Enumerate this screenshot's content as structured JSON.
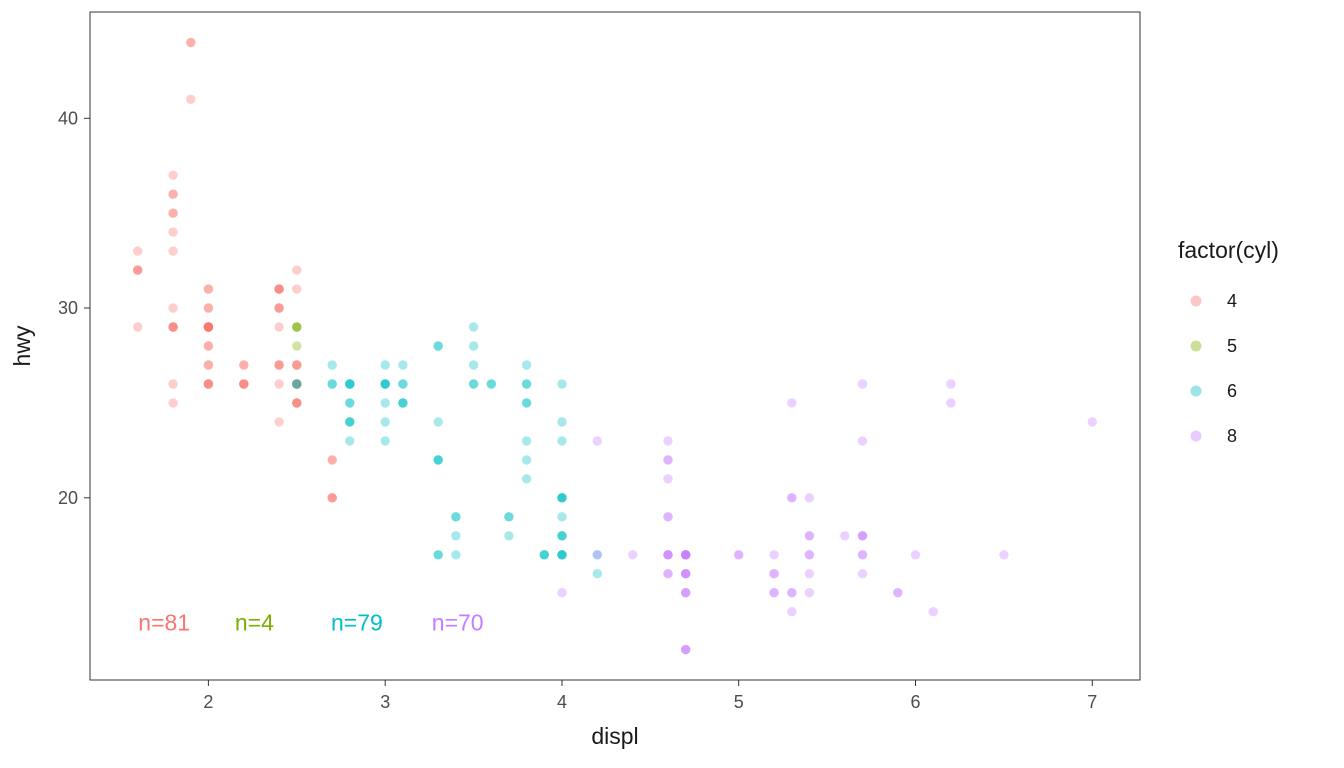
{
  "chart_data": {
    "type": "scatter",
    "title": "",
    "xlabel": "displ",
    "ylabel": "hwy",
    "xlim": [
      1.33,
      7.27
    ],
    "ylim": [
      10.4,
      45.6
    ],
    "x_ticks": [
      2,
      3,
      4,
      5,
      6,
      7
    ],
    "y_ticks": [
      20,
      30,
      40
    ],
    "grid": false,
    "point_alpha": 0.35,
    "legend": {
      "title": "factor(cyl)",
      "position": "right",
      "entries": [
        {
          "label": "4",
          "color": "#F8766D"
        },
        {
          "label": "5",
          "color": "#7CAE00"
        },
        {
          "label": "6",
          "color": "#00BFC4"
        },
        {
          "label": "8",
          "color": "#C77CFF"
        }
      ]
    },
    "annotations": [
      {
        "text": "n=81",
        "x": 1.75,
        "y": 13.0,
        "color": "#F8766D"
      },
      {
        "text": "n=4",
        "x": 2.26,
        "y": 13.0,
        "color": "#7CAE00"
      },
      {
        "text": "n=79",
        "x": 2.84,
        "y": 13.0,
        "color": "#00BFC4"
      },
      {
        "text": "n=70",
        "x": 3.41,
        "y": 13.0,
        "color": "#C77CFF"
      }
    ],
    "series": [
      {
        "name": "4",
        "color": "#F8766D",
        "count": 81,
        "points": [
          [
            1.8,
            29
          ],
          [
            1.8,
            29
          ],
          [
            2.0,
            31
          ],
          [
            2.0,
            30
          ],
          [
            1.8,
            26
          ],
          [
            1.8,
            25
          ],
          [
            2.0,
            28
          ],
          [
            2.0,
            27
          ],
          [
            2.4,
            27
          ],
          [
            2.4,
            30
          ],
          [
            2.4,
            24
          ],
          [
            1.6,
            33
          ],
          [
            1.6,
            32
          ],
          [
            1.6,
            32
          ],
          [
            1.6,
            29
          ],
          [
            1.6,
            32
          ],
          [
            1.8,
            34
          ],
          [
            1.8,
            36
          ],
          [
            1.8,
            36
          ],
          [
            2.0,
            29
          ],
          [
            2.4,
            26
          ],
          [
            2.4,
            27
          ],
          [
            2.4,
            30
          ],
          [
            2.4,
            31
          ],
          [
            2.0,
            26
          ],
          [
            2.0,
            27
          ],
          [
            2.0,
            30
          ],
          [
            2.0,
            31
          ],
          [
            2.4,
            29
          ],
          [
            2.4,
            27
          ],
          [
            2.5,
            31
          ],
          [
            2.5,
            32
          ],
          [
            2.5,
            26
          ],
          [
            2.5,
            27
          ],
          [
            2.5,
            25
          ],
          [
            2.5,
            26
          ],
          [
            2.5,
            25
          ],
          [
            2.5,
            26
          ],
          [
            2.2,
            26
          ],
          [
            2.2,
            26
          ],
          [
            2.5,
            26
          ],
          [
            2.5,
            25
          ],
          [
            2.5,
            27
          ],
          [
            2.5,
            25
          ],
          [
            2.5,
            27
          ],
          [
            2.5,
            26
          ],
          [
            2.7,
            20
          ],
          [
            2.7,
            20
          ],
          [
            2.2,
            26
          ],
          [
            2.2,
            27
          ],
          [
            2.4,
            30
          ],
          [
            2.4,
            31
          ],
          [
            2.2,
            26
          ],
          [
            2.2,
            27
          ],
          [
            2.4,
            31
          ],
          [
            2.4,
            31
          ],
          [
            1.8,
            30
          ],
          [
            1.8,
            33
          ],
          [
            1.8,
            35
          ],
          [
            1.8,
            37
          ],
          [
            1.8,
            35
          ],
          [
            2.7,
            20
          ],
          [
            2.7,
            22
          ],
          [
            2.7,
            22
          ],
          [
            2.0,
            29
          ],
          [
            2.0,
            29
          ],
          [
            2.0,
            26
          ],
          [
            2.0,
            29
          ],
          [
            1.9,
            44
          ],
          [
            2.0,
            26
          ],
          [
            2.0,
            29
          ],
          [
            2.0,
            29
          ],
          [
            2.0,
            29
          ],
          [
            1.9,
            44
          ],
          [
            1.9,
            41
          ],
          [
            2.0,
            29
          ],
          [
            2.0,
            26
          ],
          [
            1.8,
            29
          ],
          [
            1.8,
            29
          ],
          [
            2.0,
            28
          ],
          [
            2.0,
            29
          ]
        ]
      },
      {
        "name": "5",
        "color": "#7CAE00",
        "count": 4,
        "points": [
          [
            2.5,
            29
          ],
          [
            2.5,
            29
          ],
          [
            2.5,
            28
          ],
          [
            2.5,
            29
          ]
        ]
      },
      {
        "name": "6",
        "color": "#00BFC4",
        "count": 79,
        "points": [
          [
            2.8,
            26
          ],
          [
            2.8,
            26
          ],
          [
            3.1,
            27
          ],
          [
            2.8,
            25
          ],
          [
            2.8,
            25
          ],
          [
            3.1,
            25
          ],
          [
            3.1,
            25
          ],
          [
            2.8,
            24
          ],
          [
            3.1,
            25
          ],
          [
            3.1,
            26
          ],
          [
            3.5,
            29
          ],
          [
            3.6,
            26
          ],
          [
            3.0,
            24
          ],
          [
            3.3,
            22
          ],
          [
            3.3,
            22
          ],
          [
            3.3,
            24
          ],
          [
            3.3,
            22
          ],
          [
            3.3,
            17
          ],
          [
            3.8,
            22
          ],
          [
            3.8,
            21
          ],
          [
            3.8,
            23
          ],
          [
            4.0,
            23
          ],
          [
            3.7,
            19
          ],
          [
            3.7,
            18
          ],
          [
            3.9,
            17
          ],
          [
            3.9,
            17
          ],
          [
            3.9,
            17
          ],
          [
            4.0,
            17
          ],
          [
            4.0,
            17
          ],
          [
            4.0,
            18
          ],
          [
            4.0,
            17
          ],
          [
            4.2,
            17
          ],
          [
            4.2,
            16
          ],
          [
            3.8,
            26
          ],
          [
            3.8,
            25
          ],
          [
            4.0,
            26
          ],
          [
            4.0,
            24
          ],
          [
            2.5,
            26
          ],
          [
            2.5,
            26
          ],
          [
            3.3,
            28
          ],
          [
            2.7,
            26
          ],
          [
            2.7,
            26
          ],
          [
            2.7,
            27
          ],
          [
            3.0,
            23
          ],
          [
            3.7,
            19
          ],
          [
            4.0,
            18
          ],
          [
            4.0,
            17
          ],
          [
            4.0,
            19
          ],
          [
            3.5,
            27
          ],
          [
            3.5,
            26
          ],
          [
            3.0,
            26
          ],
          [
            3.0,
            25
          ],
          [
            3.5,
            26
          ],
          [
            3.3,
            17
          ],
          [
            4.0,
            20
          ],
          [
            4.0,
            20
          ],
          [
            3.1,
            26
          ],
          [
            3.8,
            27
          ],
          [
            3.8,
            26
          ],
          [
            3.8,
            25
          ],
          [
            3.4,
            19
          ],
          [
            3.4,
            17
          ],
          [
            4.0,
            20
          ],
          [
            3.0,
            26
          ],
          [
            3.0,
            26
          ],
          [
            3.5,
            28
          ],
          [
            3.0,
            26
          ],
          [
            3.0,
            27
          ],
          [
            3.3,
            28
          ],
          [
            3.4,
            19
          ],
          [
            3.4,
            18
          ],
          [
            4.0,
            20
          ],
          [
            4.0,
            18
          ],
          [
            2.8,
            24
          ],
          [
            2.8,
            23
          ],
          [
            2.8,
            24
          ],
          [
            2.8,
            26
          ],
          [
            2.8,
            26
          ],
          [
            3.6,
            26
          ]
        ]
      },
      {
        "name": "8",
        "color": "#C77CFF",
        "count": 70,
        "points": [
          [
            4.2,
            23
          ],
          [
            5.3,
            20
          ],
          [
            5.3,
            15
          ],
          [
            5.3,
            20
          ],
          [
            5.7,
            17
          ],
          [
            6.0,
            17
          ],
          [
            5.7,
            26
          ],
          [
            5.7,
            23
          ],
          [
            6.2,
            26
          ],
          [
            6.2,
            25
          ],
          [
            7.0,
            24
          ],
          [
            5.3,
            14
          ],
          [
            5.3,
            15
          ],
          [
            5.7,
            17
          ],
          [
            6.5,
            17
          ],
          [
            4.7,
            16
          ],
          [
            4.7,
            16
          ],
          [
            4.7,
            12
          ],
          [
            5.2,
            15
          ],
          [
            5.2,
            17
          ],
          [
            4.7,
            15
          ],
          [
            4.7,
            17
          ],
          [
            4.7,
            17
          ],
          [
            5.2,
            16
          ],
          [
            5.7,
            18
          ],
          [
            5.9,
            15
          ],
          [
            4.7,
            16
          ],
          [
            4.7,
            12
          ],
          [
            4.7,
            17
          ],
          [
            4.7,
            15
          ],
          [
            4.7,
            17
          ],
          [
            4.7,
            16
          ],
          [
            5.2,
            16
          ],
          [
            5.2,
            15
          ],
          [
            5.7,
            16
          ],
          [
            5.9,
            15
          ],
          [
            4.6,
            17
          ],
          [
            5.4,
            17
          ],
          [
            5.4,
            18
          ],
          [
            4.6,
            19
          ],
          [
            5.0,
            17
          ],
          [
            4.6,
            17
          ],
          [
            4.6,
            16
          ],
          [
            4.6,
            17
          ],
          [
            4.6,
            17
          ],
          [
            5.4,
            15
          ],
          [
            4.6,
            21
          ],
          [
            4.6,
            22
          ],
          [
            4.6,
            23
          ],
          [
            4.6,
            22
          ],
          [
            5.4,
            20
          ],
          [
            4.7,
            17
          ],
          [
            4.7,
            17
          ],
          [
            4.7,
            12
          ],
          [
            5.7,
            18
          ],
          [
            6.1,
            14
          ],
          [
            4.0,
            15
          ],
          [
            4.2,
            17
          ],
          [
            4.4,
            17
          ],
          [
            4.6,
            16
          ],
          [
            5.4,
            17
          ],
          [
            5.4,
            16
          ],
          [
            5.4,
            18
          ],
          [
            4.6,
            19
          ],
          [
            5.0,
            17
          ],
          [
            5.6,
            18
          ],
          [
            5.3,
            25
          ],
          [
            4.7,
            17
          ],
          [
            4.7,
            15
          ],
          [
            5.7,
            18
          ]
        ]
      }
    ]
  }
}
